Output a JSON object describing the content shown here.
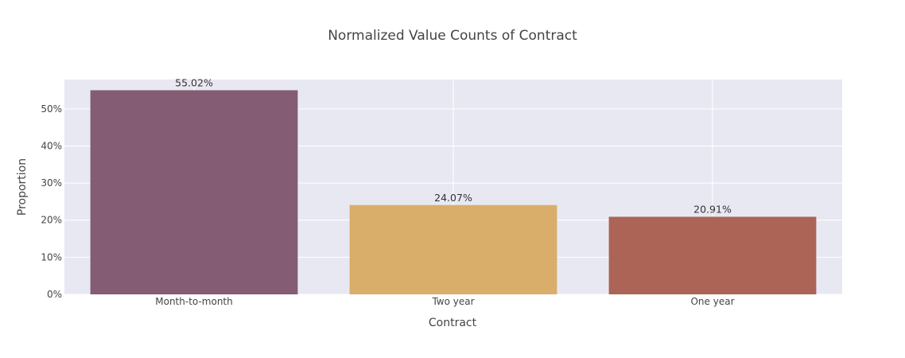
{
  "chart_data": {
    "type": "bar",
    "title": "Normalized Value Counts of Contract",
    "xlabel": "Contract",
    "ylabel": "Proportion",
    "categories": [
      "Month-to-month",
      "Two year",
      "One year"
    ],
    "values": [
      0.5502,
      0.2407,
      0.2091
    ],
    "data_labels": [
      "55.02%",
      "24.07%",
      "20.91%"
    ],
    "colors": [
      "#845c73",
      "#d9ae6a",
      "#ab6456"
    ],
    "ylim": [
      0,
      0.579
    ],
    "yticks": [
      0,
      0.1,
      0.2,
      0.3,
      0.4,
      0.5
    ],
    "ytick_labels": [
      "0%",
      "10%",
      "20%",
      "30%",
      "40%",
      "50%"
    ],
    "grid": true,
    "plot_bg": "#e8e8f2"
  }
}
